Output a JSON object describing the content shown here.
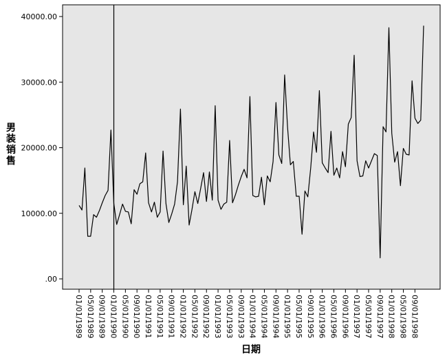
{
  "chart_data": {
    "type": "line",
    "title": "",
    "xlabel": "日期",
    "ylabel": "男装销售",
    "ylim": [
      0,
      40000
    ],
    "y_ticks": [
      ".00",
      "10000.00",
      "20000.00",
      "30000.00",
      "40000.00"
    ],
    "y_tick_values": [
      0,
      10000,
      20000,
      30000,
      40000
    ],
    "x_tick_labels": [
      "01/01/1989",
      "05/01/1989",
      "09/01/1989",
      "01/01/1990",
      "05/01/1990",
      "09/01/1990",
      "01/01/1991",
      "05/01/1991",
      "09/01/1991",
      "01/01/1992",
      "05/01/1992",
      "09/01/1992",
      "01/01/1993",
      "05/01/1993",
      "09/01/1993",
      "01/01/1994",
      "05/01/1994",
      "09/01/1994",
      "01/01/1995",
      "05/01/1995",
      "09/01/1995",
      "01/01/1996",
      "05/01/1996",
      "09/01/1996",
      "01/01/1997",
      "05/01/1997",
      "09/01/1997",
      "01/01/1998",
      "05/01/1998",
      "09/01/1998"
    ],
    "reference_line": "01/01/1990",
    "grid": false,
    "legend": "none",
    "series": [
      {
        "values": [
          11200,
          10500,
          16900,
          6500,
          6500,
          9800,
          9400,
          10400,
          11600,
          12700,
          13500,
          22700,
          11500,
          8300,
          9800,
          11400,
          10300,
          10200,
          8400,
          13600,
          12900,
          14500,
          14800,
          19200,
          11600,
          10200,
          11700,
          9400,
          10200,
          19500,
          11500,
          8600,
          9900,
          11400,
          14800,
          25900,
          11300,
          17200,
          8200,
          10600,
          13300,
          11500,
          13800,
          16200,
          11800,
          16300,
          12000,
          26400,
          12000,
          10600,
          11400,
          11700,
          21100,
          11600,
          12800,
          14300,
          15600,
          16700,
          15400,
          27800,
          12700,
          12500,
          12600,
          15500,
          11300,
          15700,
          14800,
          17900,
          26900,
          18900,
          17600,
          31100,
          23200,
          17400,
          17900,
          12600,
          12600,
          6800,
          13400,
          12500,
          16900,
          22400,
          19300,
          28700,
          17700,
          16900,
          16200,
          22500,
          15800,
          16900,
          15400,
          19400,
          17100,
          23600,
          24600,
          34100,
          18000,
          15600,
          15700,
          18000,
          16900,
          18000,
          19100,
          18800,
          3200,
          23200,
          22400,
          38300,
          22200,
          17800,
          19400,
          14200,
          19900,
          19000,
          18900,
          30200,
          24500,
          23700,
          24200,
          38600
        ]
      }
    ]
  }
}
